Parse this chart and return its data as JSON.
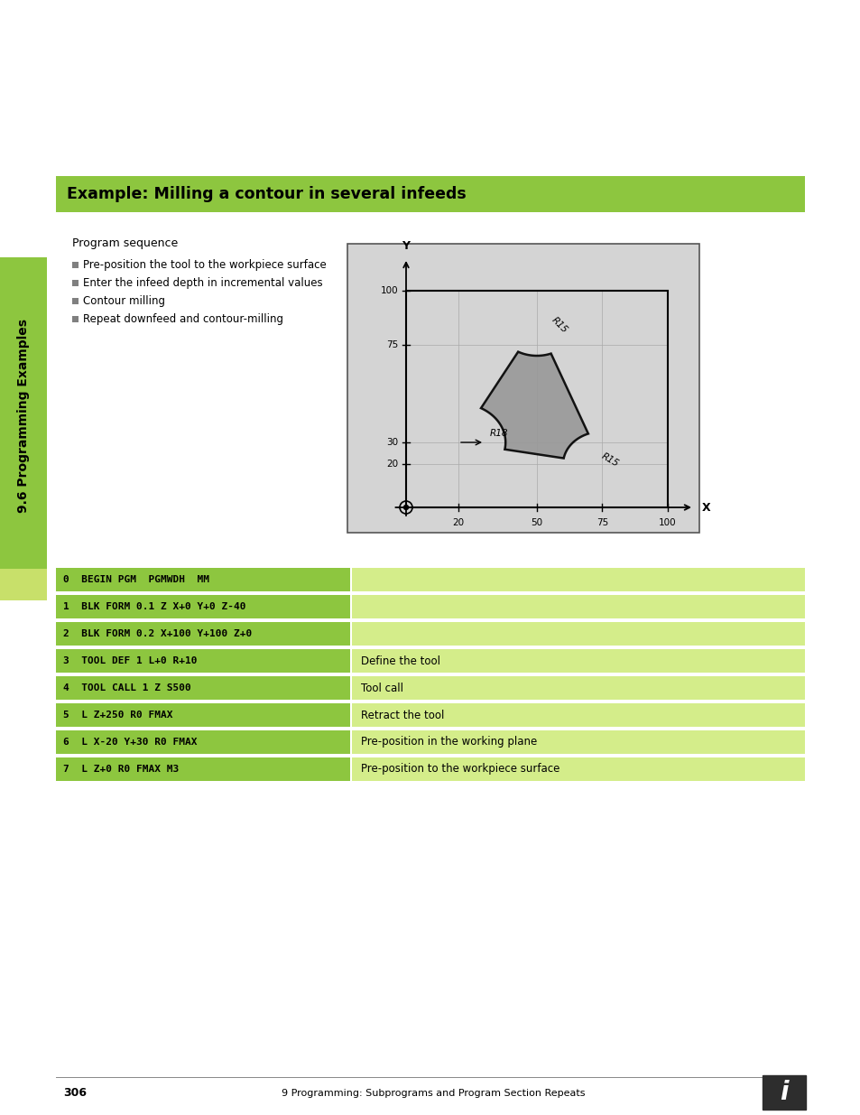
{
  "title": "Example: Milling a contour in several infeeds",
  "title_bg": "#8dc63f",
  "section_label": "9.6 Programming Examples",
  "program_sequence_title": "Program sequence",
  "bullets": [
    "Pre-position the tool to the workpiece surface",
    "Enter the infeed depth in incremental values",
    "Contour milling",
    "Repeat downfeed and contour-milling"
  ],
  "code_rows": [
    {
      "code": "0  BEGIN PGM  PGMWDH  MM",
      "comment": ""
    },
    {
      "code": "1  BLK FORM 0.1 Z X+0 Y+0 Z-40",
      "comment": ""
    },
    {
      "code": "2  BLK FORM 0.2 X+100 Y+100 Z+0",
      "comment": ""
    },
    {
      "code": "3  TOOL DEF 1 L+0 R+10",
      "comment": "Define the tool"
    },
    {
      "code": "4  TOOL CALL 1 Z S500",
      "comment": "Tool call"
    },
    {
      "code": "5  L Z+250 R0 FMAX",
      "comment": "Retract the tool"
    },
    {
      "code": "6  L X-20 Y+30 R0 FMAX",
      "comment": "Pre-position in the working plane"
    },
    {
      "code": "7  L Z+0 R0 FMAX M3",
      "comment": "Pre-position to the workpiece surface"
    }
  ],
  "code_bg": "#8dc63f",
  "code_comment_bg": "#d4ed8a",
  "page_number": "306",
  "footer_text": "9 Programming: Subprograms and Program Section Repeats",
  "bg_color": "#ffffff",
  "diagram_bg": "#d4d4d4",
  "contour_fill": "#999999",
  "contour_stroke": "#000000"
}
